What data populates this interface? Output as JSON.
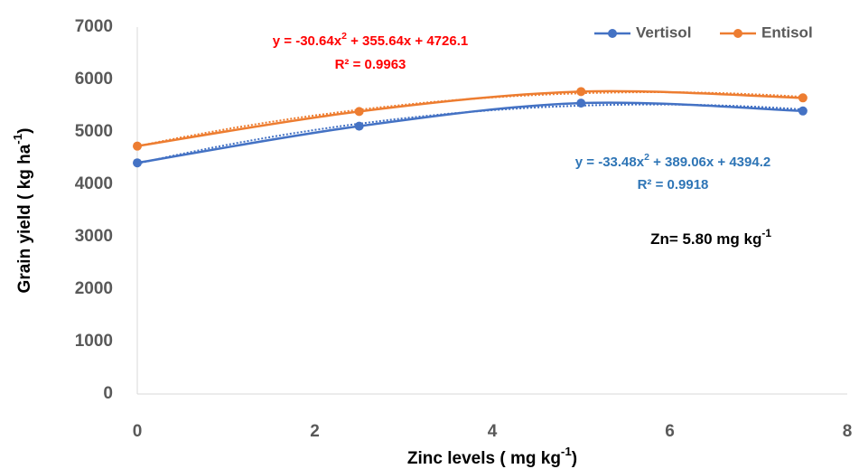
{
  "chart_data": {
    "type": "line",
    "x_label_parts": [
      "Zinc levels ( mg kg",
      "-1",
      ")"
    ],
    "y_label_parts": [
      "Grain yield ( kg ha",
      "-1",
      ")"
    ],
    "x": [
      0,
      2.5,
      5,
      7.5
    ],
    "series": [
      {
        "name": "Vertisol",
        "color": "#4472c4",
        "values": [
          4410,
          5110,
          5550,
          5400
        ],
        "trendline": {
          "coefficients": [
            -33.48,
            389.06,
            4394.2
          ]
        }
      },
      {
        "name": "Entisol",
        "color": "#ed7d31",
        "values": [
          4730,
          5390,
          5770,
          5650
        ],
        "trendline": {
          "coefficients": [
            -30.64,
            355.64,
            4726.1
          ]
        }
      }
    ],
    "annotations": [
      {
        "parts": [
          "y = -30.64x",
          "2",
          " + 355.64x + 4726.1"
        ],
        "r2": "R² = 0.9963",
        "color": "#ff0000"
      },
      {
        "parts": [
          "y = -33.48x",
          "2",
          " + 389.06x + 4394.2"
        ],
        "r2": "R² = 0.9918",
        "color": "#2e75b6"
      },
      {
        "parts": [
          "Zn= 5.80 mg kg",
          "-1"
        ],
        "color": "#000000"
      }
    ],
    "xlim": [
      0,
      8
    ],
    "xticks": [
      0,
      2,
      4,
      6,
      8
    ],
    "ylim": [
      0,
      7000
    ],
    "yticks": [
      0,
      1000,
      2000,
      3000,
      4000,
      5000,
      6000,
      7000
    ],
    "grid": false,
    "legend": "top-right"
  }
}
